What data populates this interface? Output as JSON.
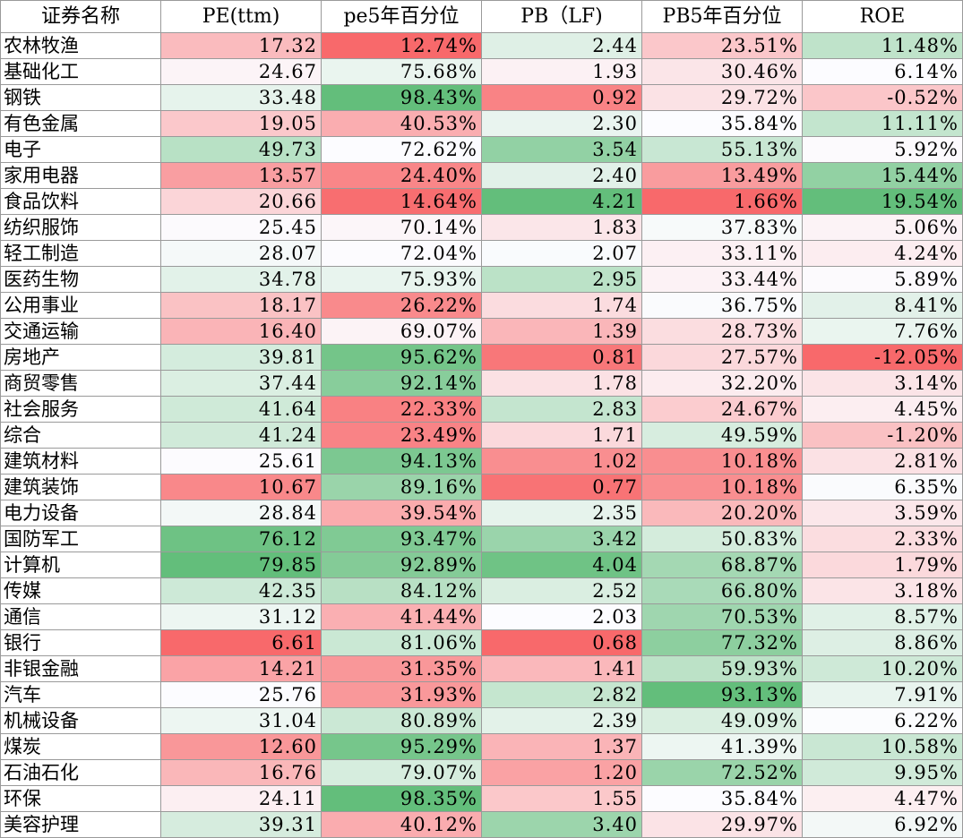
{
  "chart_data": {
    "type": "table",
    "columns": [
      "证券名称",
      "PE(ttm)",
      "pe5年百分位",
      "PB（LF)",
      "PB5年百分位",
      "ROE"
    ],
    "rows": [
      {
        "name": "农林牧渔",
        "values": [
          "17.32",
          "12.74%",
          "2.44",
          "23.51%",
          "11.48%"
        ]
      },
      {
        "name": "基础化工",
        "values": [
          "24.67",
          "75.68%",
          "1.93",
          "30.46%",
          "6.14%"
        ]
      },
      {
        "name": "钢铁",
        "values": [
          "33.48",
          "98.43%",
          "0.92",
          "29.72%",
          "-0.52%"
        ]
      },
      {
        "name": "有色金属",
        "values": [
          "19.05",
          "40.53%",
          "2.30",
          "35.84%",
          "11.11%"
        ]
      },
      {
        "name": "电子",
        "values": [
          "49.73",
          "72.62%",
          "3.54",
          "55.13%",
          "5.92%"
        ]
      },
      {
        "name": "家用电器",
        "values": [
          "13.57",
          "24.40%",
          "2.40",
          "13.49%",
          "15.44%"
        ]
      },
      {
        "name": "食品饮料",
        "values": [
          "20.66",
          "14.64%",
          "4.21",
          "1.66%",
          "19.54%"
        ]
      },
      {
        "name": "纺织服饰",
        "values": [
          "25.45",
          "70.14%",
          "1.83",
          "37.83%",
          "5.06%"
        ]
      },
      {
        "name": "轻工制造",
        "values": [
          "28.07",
          "72.04%",
          "2.07",
          "33.11%",
          "4.24%"
        ]
      },
      {
        "name": "医药生物",
        "values": [
          "34.78",
          "75.93%",
          "2.95",
          "33.44%",
          "5.89%"
        ]
      },
      {
        "name": "公用事业",
        "values": [
          "18.17",
          "26.22%",
          "1.74",
          "36.75%",
          "8.41%"
        ]
      },
      {
        "name": "交通运输",
        "values": [
          "16.40",
          "69.07%",
          "1.39",
          "28.73%",
          "7.76%"
        ]
      },
      {
        "name": "房地产",
        "values": [
          "39.81",
          "95.62%",
          "0.81",
          "27.57%",
          "-12.05%"
        ]
      },
      {
        "name": "商贸零售",
        "values": [
          "37.44",
          "92.14%",
          "1.78",
          "32.20%",
          "3.14%"
        ]
      },
      {
        "name": "社会服务",
        "values": [
          "41.64",
          "22.33%",
          "2.83",
          "24.67%",
          "4.45%"
        ]
      },
      {
        "name": "综合",
        "values": [
          "41.24",
          "23.49%",
          "1.71",
          "49.59%",
          "-1.20%"
        ]
      },
      {
        "name": "建筑材料",
        "values": [
          "25.61",
          "94.13%",
          "1.02",
          "10.18%",
          "2.81%"
        ]
      },
      {
        "name": "建筑装饰",
        "values": [
          "10.67",
          "89.16%",
          "0.77",
          "10.18%",
          "6.35%"
        ]
      },
      {
        "name": "电力设备",
        "values": [
          "28.84",
          "39.54%",
          "2.35",
          "20.20%",
          "3.59%"
        ]
      },
      {
        "name": "国防军工",
        "values": [
          "76.12",
          "93.47%",
          "3.42",
          "50.83%",
          "2.33%"
        ]
      },
      {
        "name": "计算机",
        "values": [
          "79.85",
          "92.89%",
          "4.04",
          "68.87%",
          "1.79%"
        ]
      },
      {
        "name": "传媒",
        "values": [
          "42.35",
          "84.12%",
          "2.52",
          "66.80%",
          "3.18%"
        ]
      },
      {
        "name": "通信",
        "values": [
          "31.12",
          "41.44%",
          "2.03",
          "70.53%",
          "8.57%"
        ]
      },
      {
        "name": "银行",
        "values": [
          "6.61",
          "81.06%",
          "0.68",
          "77.32%",
          "8.86%"
        ]
      },
      {
        "name": "非银金融",
        "values": [
          "14.21",
          "31.35%",
          "1.41",
          "59.93%",
          "10.20%"
        ]
      },
      {
        "name": "汽车",
        "values": [
          "25.76",
          "31.93%",
          "2.82",
          "93.13%",
          "7.91%"
        ]
      },
      {
        "name": "机械设备",
        "values": [
          "31.04",
          "80.89%",
          "2.39",
          "49.09%",
          "6.22%"
        ]
      },
      {
        "name": "煤炭",
        "values": [
          "12.60",
          "95.29%",
          "1.37",
          "41.39%",
          "10.58%"
        ]
      },
      {
        "name": "石油石化",
        "values": [
          "16.76",
          "79.07%",
          "1.20",
          "72.52%",
          "9.95%"
        ]
      },
      {
        "name": "环保",
        "values": [
          "24.11",
          "98.35%",
          "1.55",
          "35.84%",
          "4.47%"
        ]
      },
      {
        "name": "美容护理",
        "values": [
          "39.31",
          "40.12%",
          "3.40",
          "29.97%",
          "6.92%"
        ]
      }
    ],
    "color_scale": {
      "low": "#f8696b",
      "mid": "#fcfcff",
      "high": "#63be7b"
    }
  }
}
